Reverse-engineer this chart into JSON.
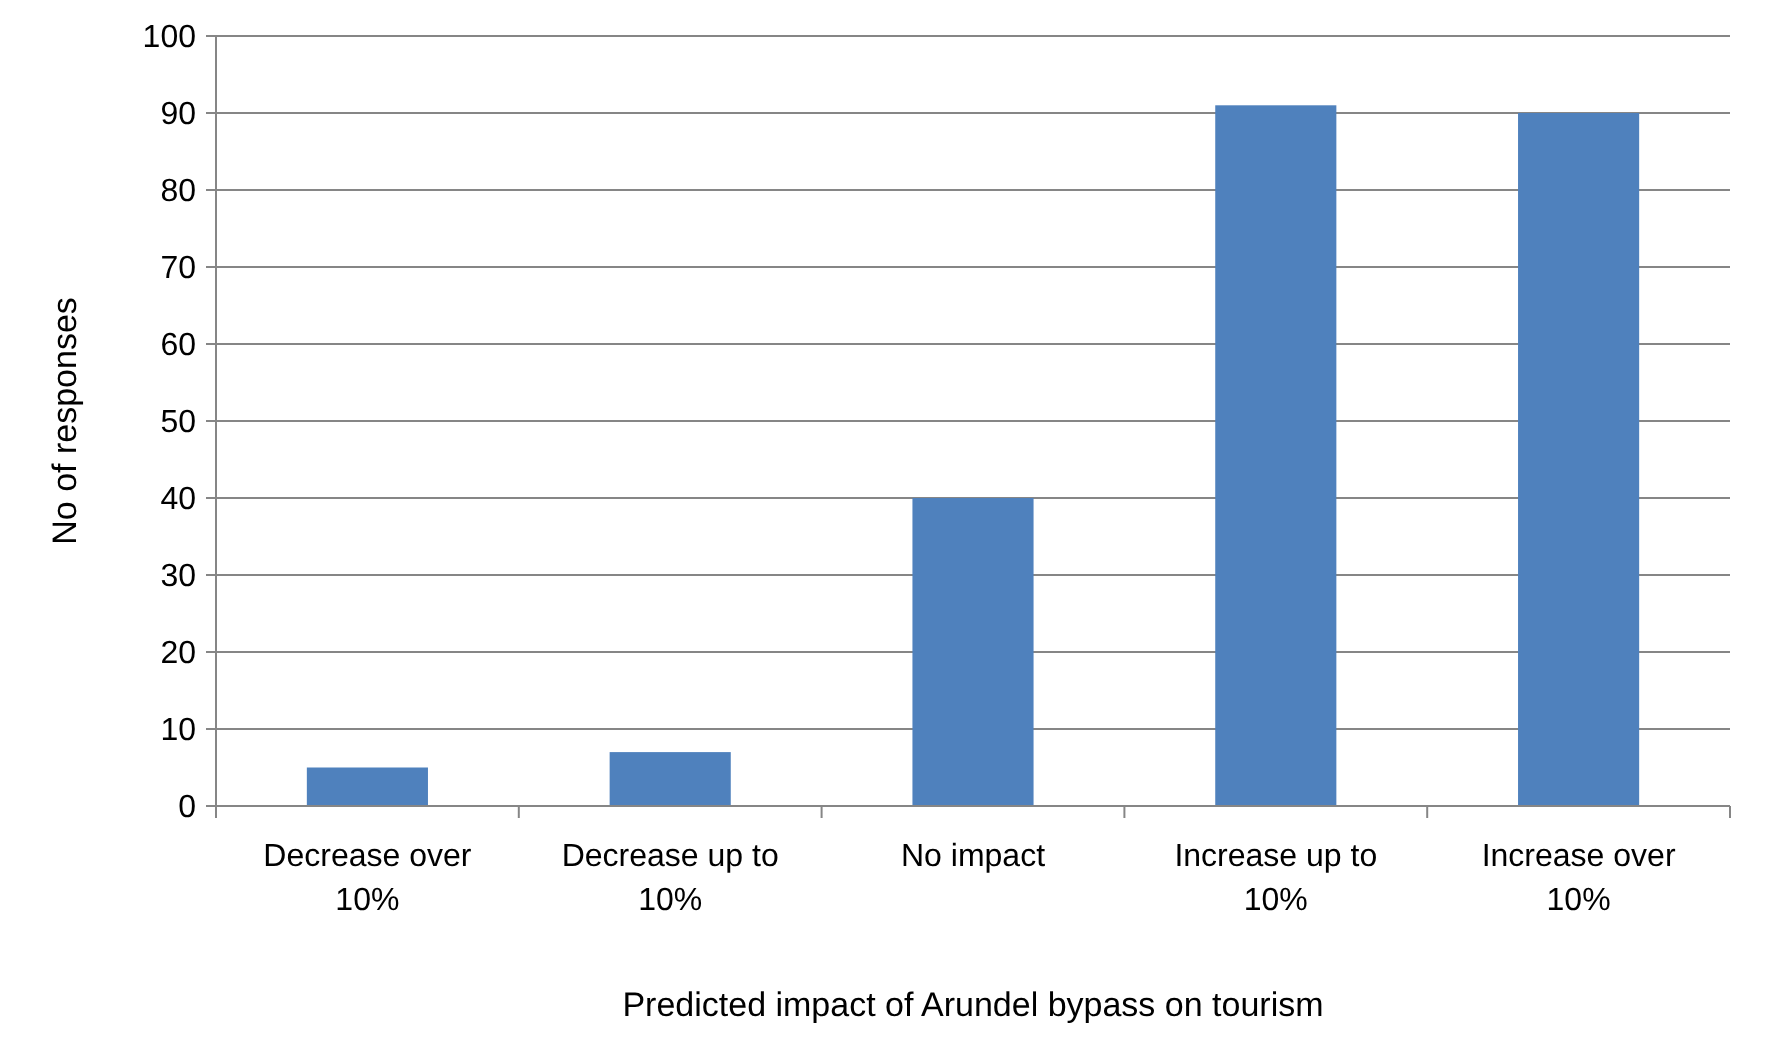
{
  "chart_data": {
    "type": "bar",
    "xlabel": "Predicted impact of Arundel bypass on tourism",
    "ylabel": "No of responses",
    "categories": [
      "Decrease over 10%",
      "Decrease up to 10%",
      "No impact",
      "Increase up to 10%",
      "Increase over 10%"
    ],
    "values": [
      5,
      7,
      40,
      91,
      90
    ],
    "color": "#4f81bd",
    "ylim": [
      0,
      100
    ],
    "yticks": [
      0,
      10,
      20,
      30,
      40,
      50,
      60,
      70,
      80,
      90,
      100
    ],
    "grid": "y"
  }
}
